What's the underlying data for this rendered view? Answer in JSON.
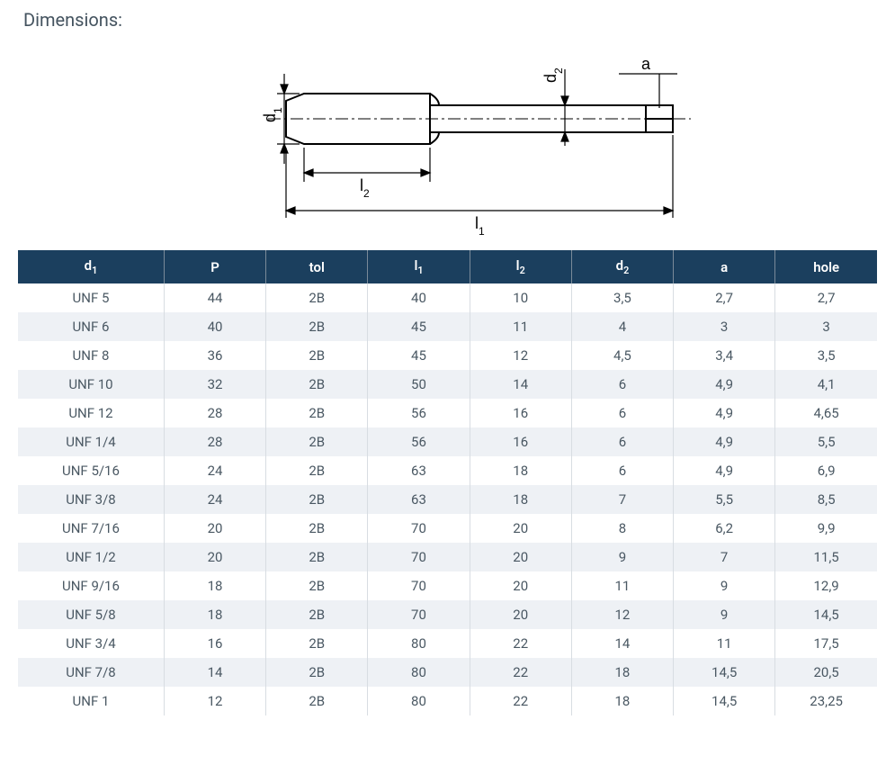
{
  "title": "Dimensions:",
  "diagram": {
    "labels": {
      "d1": "d",
      "d1_sub": "1",
      "d2": "d",
      "d2_sub": "2",
      "l1": "l",
      "l1_sub": "1",
      "l2": "l",
      "l2_sub": "2",
      "a": "a"
    },
    "stroke": "#000000",
    "font_family": "Segoe UI, Arial, sans-serif",
    "font_size": 18
  },
  "table": {
    "header_bg": "#1b3f5e",
    "header_fg": "#ffffff",
    "row_even_bg": "#eef1f5",
    "row_odd_bg": "#ffffff",
    "columns": [
      {
        "key": "d1",
        "label": "d",
        "sub": "1"
      },
      {
        "key": "P",
        "label": "P"
      },
      {
        "key": "tol",
        "label": "tol"
      },
      {
        "key": "l1",
        "label": "l",
        "sub": "1"
      },
      {
        "key": "l2",
        "label": "l",
        "sub": "2"
      },
      {
        "key": "d2",
        "label": "d",
        "sub": "2"
      },
      {
        "key": "a",
        "label": "a"
      },
      {
        "key": "hole",
        "label": "hole"
      }
    ],
    "rows": [
      [
        "UNF 5",
        "44",
        "2B",
        "40",
        "10",
        "3,5",
        "2,7",
        "2,7"
      ],
      [
        "UNF 6",
        "40",
        "2B",
        "45",
        "11",
        "4",
        "3",
        "3"
      ],
      [
        "UNF 8",
        "36",
        "2B",
        "45",
        "12",
        "4,5",
        "3,4",
        "3,5"
      ],
      [
        "UNF 10",
        "32",
        "2B",
        "50",
        "14",
        "6",
        "4,9",
        "4,1"
      ],
      [
        "UNF 12",
        "28",
        "2B",
        "56",
        "16",
        "6",
        "4,9",
        "4,65"
      ],
      [
        "UNF 1/4",
        "28",
        "2B",
        "56",
        "16",
        "6",
        "4,9",
        "5,5"
      ],
      [
        "UNF 5/16",
        "24",
        "2B",
        "63",
        "18",
        "6",
        "4,9",
        "6,9"
      ],
      [
        "UNF 3/8",
        "24",
        "2B",
        "63",
        "18",
        "7",
        "5,5",
        "8,5"
      ],
      [
        "UNF 7/16",
        "20",
        "2B",
        "70",
        "20",
        "8",
        "6,2",
        "9,9"
      ],
      [
        "UNF 1/2",
        "20",
        "2B",
        "70",
        "20",
        "9",
        "7",
        "11,5"
      ],
      [
        "UNF 9/16",
        "18",
        "2B",
        "70",
        "20",
        "11",
        "9",
        "12,9"
      ],
      [
        "UNF 5/8",
        "18",
        "2B",
        "70",
        "20",
        "12",
        "9",
        "14,5"
      ],
      [
        "UNF 3/4",
        "16",
        "2B",
        "80",
        "22",
        "14",
        "11",
        "17,5"
      ],
      [
        "UNF 7/8",
        "14",
        "2B",
        "80",
        "22",
        "18",
        "14,5",
        "20,5"
      ],
      [
        "UNF 1",
        "12",
        "2B",
        "80",
        "22",
        "18",
        "14,5",
        "23,25"
      ]
    ]
  }
}
